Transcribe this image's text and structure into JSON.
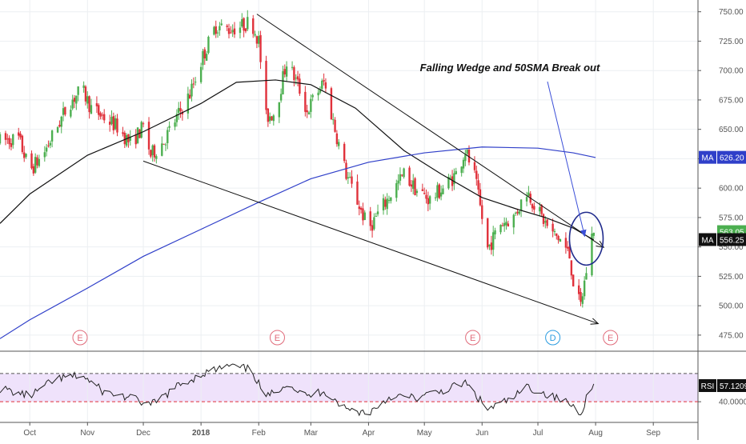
{
  "chart_data": [
    {
      "type": "candlestick",
      "panel": "price",
      "y_axis_side": "right",
      "ylim": [
        462,
        760
      ],
      "y_ticks": [
        "750.00",
        "725.00",
        "700.00",
        "675.00",
        "650.00",
        "625.00",
        "600.00",
        "575.00",
        "550.00",
        "525.00",
        "500.00",
        "475.00"
      ],
      "x_ticks": [
        {
          "label": "Oct",
          "date": "2017-10-01"
        },
        {
          "label": "Nov",
          "date": "2017-11-01"
        },
        {
          "label": "Dec",
          "date": "2017-12-01"
        },
        {
          "label": "2018",
          "date": "2018-01-01"
        },
        {
          "label": "Feb",
          "date": "2018-02-01"
        },
        {
          "label": "Mar",
          "date": "2018-03-01"
        },
        {
          "label": "Apr",
          "date": "2018-04-01"
        },
        {
          "label": "May",
          "date": "2018-05-01"
        },
        {
          "label": "Jun",
          "date": "2018-06-01"
        },
        {
          "label": "Jul",
          "date": "2018-07-01"
        },
        {
          "label": "Aug",
          "date": "2018-08-01"
        },
        {
          "label": "Sep",
          "date": "2018-09-01"
        }
      ],
      "price_path": [
        [
          "2017-09-15",
          640
        ],
        [
          "2017-09-25",
          642
        ],
        [
          "2017-10-01",
          615
        ],
        [
          "2017-10-08",
          628
        ],
        [
          "2017-10-15",
          650
        ],
        [
          "2017-10-22",
          672
        ],
        [
          "2017-10-29",
          684
        ],
        [
          "2017-11-03",
          668
        ],
        [
          "2017-11-10",
          660
        ],
        [
          "2017-11-17",
          652
        ],
        [
          "2017-11-24",
          638
        ],
        [
          "2017-12-01",
          652
        ],
        [
          "2017-12-05",
          628
        ],
        [
          "2017-12-12",
          640
        ],
        [
          "2017-12-19",
          660
        ],
        [
          "2017-12-26",
          680
        ],
        [
          "2018-01-02",
          712
        ],
        [
          "2018-01-09",
          738
        ],
        [
          "2018-01-16",
          735
        ],
        [
          "2018-01-23",
          738
        ],
        [
          "2018-01-28",
          742
        ],
        [
          "2018-02-01",
          725
        ],
        [
          "2018-02-05",
          660
        ],
        [
          "2018-02-10",
          665
        ],
        [
          "2018-02-16",
          708
        ],
        [
          "2018-02-22",
          688
        ],
        [
          "2018-02-27",
          665
        ],
        [
          "2018-03-03",
          678
        ],
        [
          "2018-03-08",
          690
        ],
        [
          "2018-03-14",
          650
        ],
        [
          "2018-03-20",
          612
        ],
        [
          "2018-03-27",
          585
        ],
        [
          "2018-04-01",
          565
        ],
        [
          "2018-04-06",
          578
        ],
        [
          "2018-04-13",
          595
        ],
        [
          "2018-04-20",
          612
        ],
        [
          "2018-04-27",
          598
        ],
        [
          "2018-05-04",
          590
        ],
        [
          "2018-05-11",
          600
        ],
        [
          "2018-05-18",
          612
        ],
        [
          "2018-05-23",
          632
        ],
        [
          "2018-05-28",
          610
        ],
        [
          "2018-06-04",
          548
        ],
        [
          "2018-06-11",
          570
        ],
        [
          "2018-06-18",
          575
        ],
        [
          "2018-06-25",
          598
        ],
        [
          "2018-07-02",
          578
        ],
        [
          "2018-07-08",
          562
        ],
        [
          "2018-07-14",
          555
        ],
        [
          "2018-07-18",
          542
        ],
        [
          "2018-07-21",
          510
        ],
        [
          "2018-07-24",
          500
        ],
        [
          "2018-07-27",
          530
        ],
        [
          "2018-07-29",
          552
        ],
        [
          "2018-07-31",
          566
        ]
      ],
      "series": [
        {
          "name": "MA",
          "value_label": "556.25",
          "color": "#111111",
          "points": [
            [
              "2017-09-15",
              570
            ],
            [
              "2017-10-01",
              595
            ],
            [
              "2017-11-01",
              628
            ],
            [
              "2017-12-01",
              648
            ],
            [
              "2018-01-01",
              672
            ],
            [
              "2018-01-20",
              690
            ],
            [
              "2018-02-10",
              692
            ],
            [
              "2018-03-01",
              688
            ],
            [
              "2018-03-25",
              668
            ],
            [
              "2018-04-20",
              632
            ],
            [
              "2018-05-10",
              612
            ],
            [
              "2018-06-01",
              592
            ],
            [
              "2018-06-20",
              582
            ],
            [
              "2018-07-05",
              575
            ],
            [
              "2018-07-20",
              566
            ],
            [
              "2018-07-31",
              556
            ]
          ]
        },
        {
          "name": "MA",
          "value_label": "626.20",
          "color": "#2f3fc9",
          "points": [
            [
              "2017-09-15",
              472
            ],
            [
              "2017-10-01",
              488
            ],
            [
              "2017-11-01",
              515
            ],
            [
              "2017-12-01",
              542
            ],
            [
              "2018-01-01",
              565
            ],
            [
              "2018-02-01",
              588
            ],
            [
              "2018-03-01",
              608
            ],
            [
              "2018-04-01",
              622
            ],
            [
              "2018-05-01",
              630
            ],
            [
              "2018-06-01",
              635
            ],
            [
              "2018-07-01",
              634
            ],
            [
              "2018-07-20",
              630
            ],
            [
              "2018-08-01",
              626
            ]
          ]
        }
      ],
      "last_price_label": "563.05",
      "wedge_lines": [
        {
          "from": [
            "2018-01-31",
            748
          ],
          "to": [
            "2018-08-05",
            550
          ]
        },
        {
          "from": [
            "2017-12-01",
            623
          ],
          "to": [
            "2018-08-02",
            485
          ]
        }
      ],
      "event_markers": [
        {
          "label": "E",
          "date": "2017-10-28",
          "color": "#e06b7a"
        },
        {
          "label": "E",
          "date": "2018-02-11",
          "color": "#e06b7a"
        },
        {
          "label": "E",
          "date": "2018-05-27",
          "color": "#e06b7a"
        },
        {
          "label": "D",
          "date": "2018-07-09",
          "color": "#2a9be0"
        },
        {
          "label": "E",
          "date": "2018-08-09",
          "color": "#e06b7a"
        }
      ],
      "annotation": "Falling Wedge and 50SMA  Break out"
    },
    {
      "type": "line",
      "panel": "rsi",
      "name": "RSI",
      "value_label": "57.1209",
      "ylim": [
        18,
        92
      ],
      "upper_band": 70,
      "lower_band": 40,
      "y_ticks": [
        "40.0000"
      ],
      "points": [
        [
          "2017-09-15",
          54
        ],
        [
          "2017-10-01",
          46
        ],
        [
          "2017-10-15",
          64
        ],
        [
          "2017-10-29",
          68
        ],
        [
          "2017-11-10",
          50
        ],
        [
          "2017-11-24",
          44
        ],
        [
          "2017-12-05",
          36
        ],
        [
          "2017-12-19",
          56
        ],
        [
          "2018-01-02",
          70
        ],
        [
          "2018-01-16",
          78
        ],
        [
          "2018-01-28",
          74
        ],
        [
          "2018-02-05",
          44
        ],
        [
          "2018-02-16",
          60
        ],
        [
          "2018-02-27",
          45
        ],
        [
          "2018-03-08",
          52
        ],
        [
          "2018-03-20",
          32
        ],
        [
          "2018-04-01",
          28
        ],
        [
          "2018-04-13",
          46
        ],
        [
          "2018-04-27",
          44
        ],
        [
          "2018-05-11",
          52
        ],
        [
          "2018-05-23",
          60
        ],
        [
          "2018-06-04",
          32
        ],
        [
          "2018-06-18",
          44
        ],
        [
          "2018-06-25",
          56
        ],
        [
          "2018-07-08",
          46
        ],
        [
          "2018-07-18",
          38
        ],
        [
          "2018-07-24",
          28
        ],
        [
          "2018-07-27",
          44
        ],
        [
          "2018-07-31",
          57
        ]
      ]
    }
  ]
}
